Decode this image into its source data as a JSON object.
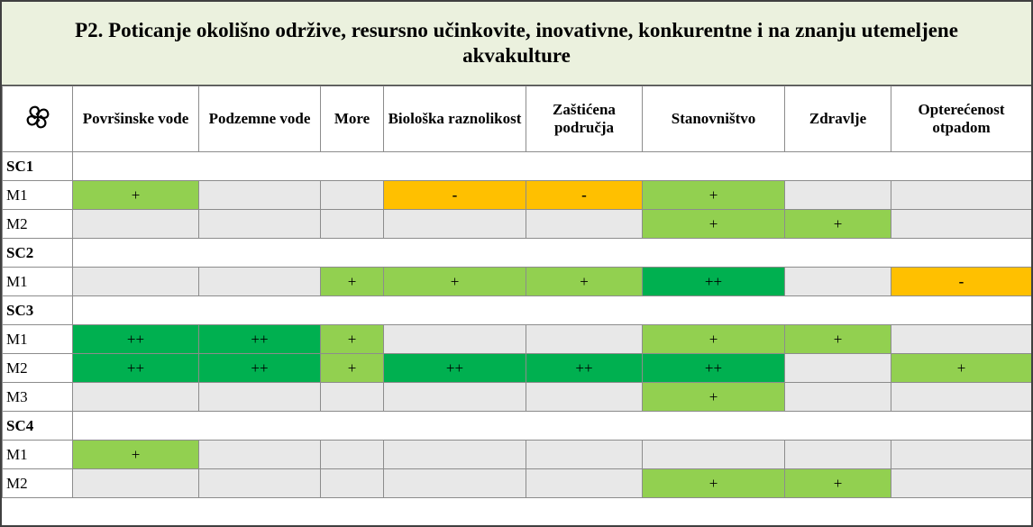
{
  "title": "P2. Poticanje okolišno održive, resursno učinkovite, inovativne, konkurentne i na znanju utemeljene akvakulture",
  "columns": [
    "Površinske vode",
    "Podzemne vode",
    "More",
    "Biološka raznolikost",
    "Zaštićena područja",
    "Stanovništvo",
    "Zdravlje",
    "Opterećenost otpadom"
  ],
  "sections": [
    {
      "label": "SC1",
      "rows": [
        {
          "label": "M1",
          "cells": [
            "+",
            null,
            null,
            "-",
            "-",
            "+",
            null,
            null
          ]
        },
        {
          "label": "M2",
          "cells": [
            null,
            null,
            null,
            null,
            null,
            "+",
            "+",
            null
          ]
        }
      ]
    },
    {
      "label": "SC2",
      "rows": [
        {
          "label": "M1",
          "cells": [
            null,
            null,
            "+",
            "+",
            "+",
            "++",
            null,
            "-"
          ]
        }
      ]
    },
    {
      "label": "SC3",
      "rows": [
        {
          "label": "M1",
          "cells": [
            "++",
            "++",
            "+",
            null,
            null,
            "+",
            "+",
            null
          ]
        },
        {
          "label": "M2",
          "cells": [
            "++",
            "++",
            "+",
            "++",
            "++",
            "++",
            null,
            "+"
          ]
        },
        {
          "label": "M3",
          "cells": [
            null,
            null,
            null,
            null,
            null,
            "+",
            null,
            null
          ]
        }
      ]
    },
    {
      "label": "SC4",
      "rows": [
        {
          "label": "M1",
          "cells": [
            "+",
            null,
            null,
            null,
            null,
            null,
            null,
            null
          ]
        },
        {
          "label": "M2",
          "cells": [
            null,
            null,
            null,
            null,
            null,
            "+",
            "+",
            null
          ]
        }
      ]
    }
  ]
}
